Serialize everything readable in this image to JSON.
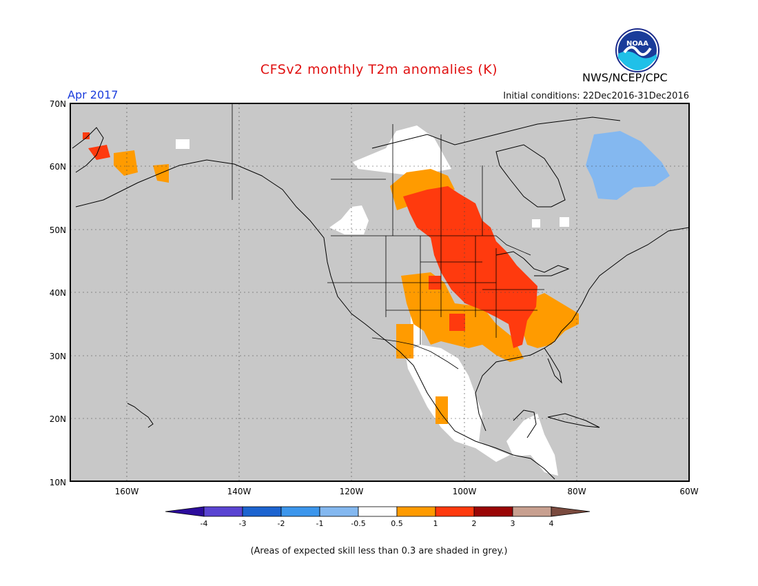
{
  "header": {
    "title": "CFSv2 monthly T2m anomalies (K)",
    "organization": "NWS/NCEP/CPC",
    "logo_text": "NOAA",
    "month": "Apr 2017",
    "initial_conditions": "Initial conditions: 22Dec2016-31Dec2016"
  },
  "map": {
    "lon_range": [
      -170,
      -60
    ],
    "lat_range": [
      10,
      70
    ],
    "lat_labels": [
      "10N",
      "20N",
      "30N",
      "40N",
      "50N",
      "60N",
      "70N"
    ],
    "lon_labels": [
      "160W",
      "140W",
      "120W",
      "100W",
      "80W",
      "60W"
    ],
    "land_color": "#c8c8c8",
    "anomaly_regions": [
      {
        "name": "north-central-us-warm",
        "category": "1 to 2",
        "color": "#ff3a0e"
      },
      {
        "name": "southern-plains-warm",
        "category": "0.5 to 1",
        "color": "#ff9b00"
      },
      {
        "name": "southeast-us-warm",
        "category": "0.5 to 1",
        "color": "#ff9b00"
      },
      {
        "name": "alaska-warm",
        "category": "0.5 to 2",
        "color": "#ff9b00"
      },
      {
        "name": "quebec-cool",
        "category": "-1 to -0.5",
        "color": "#84b8f0"
      },
      {
        "name": "mexico-neutral",
        "category": "-0.5 to 0.5",
        "color": "#ffffff"
      }
    ]
  },
  "colorbar": {
    "colors": [
      "#2c0c9c",
      "#5a44d2",
      "#1c64d0",
      "#3c96ec",
      "#84b8f0",
      "#ffffff",
      "#ff9b00",
      "#ff3a0e",
      "#9a0606",
      "#c8a090",
      "#7a4a3e"
    ],
    "labels": [
      "-4",
      "-3",
      "-2",
      "-1",
      "-0.5",
      "0.5",
      "1",
      "2",
      "3",
      "4"
    ]
  },
  "footnote": "(Areas of expected skill less than 0.3 are shaded in grey.)"
}
